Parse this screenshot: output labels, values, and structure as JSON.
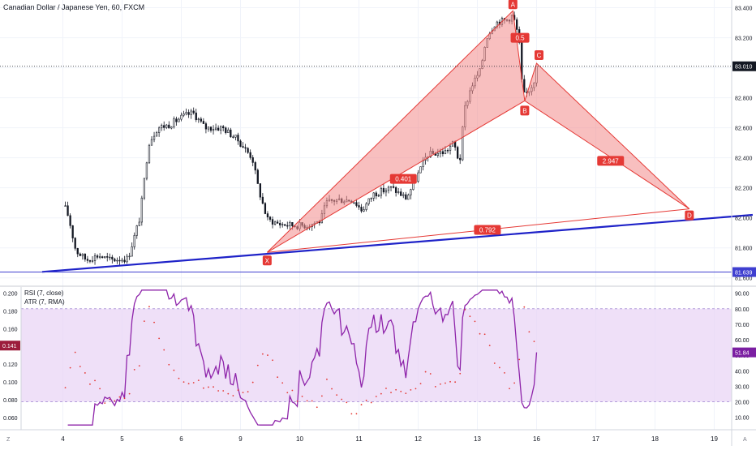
{
  "header": {
    "title": "Canadian Dollar / Japanese Yen, 60, FXCM"
  },
  "colors": {
    "up": "#ffffff",
    "down": "#131722",
    "pattern_fill": "#f28b8b",
    "pattern_stroke": "#e53935",
    "label_bg": "#e53935",
    "trendline": "#1e22c8",
    "hline": "#3f3fd0",
    "rsi_line": "#8e24aa",
    "rsi_band": "#e9d5f5",
    "atr_dots": "#e53935",
    "price_tag": "#131722",
    "atr_tag": "#9c1c3c",
    "rsi_tag": "#7b1fa2"
  },
  "chart_data": [
    {
      "type": "candlestick",
      "title": "Canadian Dollar / Japanese Yen, 60, FXCM",
      "x_ticks": [
        "4",
        "5",
        "6",
        "9",
        "10",
        "11",
        "12",
        "13",
        "16",
        "17",
        "18",
        "19"
      ],
      "y_ticks": [
        "81.600",
        "81.800",
        "82.000",
        "82.200",
        "82.400",
        "82.600",
        "82.800",
        "83.000",
        "83.200",
        "83.400"
      ],
      "ylim": [
        81.55,
        83.43
      ],
      "last_price": "83.010",
      "hline_level": "81.639",
      "keyframes": [
        {
          "t": 0,
          "p": 82.08
        },
        {
          "t": 0.05,
          "p": 82.06
        },
        {
          "t": 0.1,
          "p": 82.0
        },
        {
          "t": 0.22,
          "p": 81.78
        },
        {
          "t": 0.4,
          "p": 81.72
        },
        {
          "t": 0.6,
          "p": 81.75
        },
        {
          "t": 0.8,
          "p": 81.72
        },
        {
          "t": 1.1,
          "p": 81.73
        },
        {
          "t": 1.3,
          "p": 82.0
        },
        {
          "t": 1.45,
          "p": 82.5
        },
        {
          "t": 1.6,
          "p": 82.6
        },
        {
          "t": 1.8,
          "p": 82.62
        },
        {
          "t": 2.05,
          "p": 82.68
        },
        {
          "t": 2.2,
          "p": 82.7
        },
        {
          "t": 2.4,
          "p": 82.6
        },
        {
          "t": 2.7,
          "p": 82.6
        },
        {
          "t": 2.95,
          "p": 82.52
        },
        {
          "t": 3.2,
          "p": 82.4
        },
        {
          "t": 3.3,
          "p": 82.2
        },
        {
          "t": 3.45,
          "p": 81.99
        },
        {
          "t": 3.65,
          "p": 81.96
        },
        {
          "t": 3.9,
          "p": 81.95
        },
        {
          "t": 4.12,
          "p": 81.95
        },
        {
          "t": 4.35,
          "p": 81.98
        },
        {
          "t": 4.45,
          "p": 82.1
        },
        {
          "t": 4.6,
          "p": 82.12
        },
        {
          "t": 4.9,
          "p": 82.12
        },
        {
          "t": 5.05,
          "p": 82.05
        },
        {
          "t": 5.25,
          "p": 82.16
        },
        {
          "t": 5.55,
          "p": 82.2
        },
        {
          "t": 5.8,
          "p": 82.13
        },
        {
          "t": 5.95,
          "p": 82.25
        },
        {
          "t": 6.15,
          "p": 82.42
        },
        {
          "t": 6.45,
          "p": 82.44
        },
        {
          "t": 6.6,
          "p": 82.5
        },
        {
          "t": 6.7,
          "p": 82.36
        },
        {
          "t": 6.78,
          "p": 82.72
        },
        {
          "t": 6.9,
          "p": 82.88
        },
        {
          "t": 7.05,
          "p": 82.98
        },
        {
          "t": 7.15,
          "p": 83.2
        },
        {
          "t": 7.3,
          "p": 83.3
        },
        {
          "t": 7.5,
          "p": 83.32
        },
        {
          "t": 7.6,
          "p": 83.35
        },
        {
          "t": 7.7,
          "p": 83.2
        },
        {
          "t": 7.76,
          "p": 82.85
        },
        {
          "t": 7.8,
          "p": 82.81
        },
        {
          "t": 7.95,
          "p": 82.9
        },
        {
          "t": 8.0,
          "p": 83.02
        }
      ],
      "pattern": {
        "points": [
          {
            "label": "X",
            "t": 3.45,
            "p": 81.77
          },
          {
            "label": "A",
            "t": 7.6,
            "p": 83.38
          },
          {
            "label": "B",
            "t": 7.8,
            "p": 82.78
          },
          {
            "label": "C",
            "t": 8.0,
            "p": 83.03
          },
          {
            "label": "D",
            "t": 10.58,
            "p": 82.06
          }
        ],
        "ratios": [
          {
            "label": "0.401",
            "t": 5.75,
            "p": 82.26
          },
          {
            "label": "0.5",
            "t": 7.72,
            "p": 83.2
          },
          {
            "label": "2.947",
            "t": 9.25,
            "p": 82.38
          },
          {
            "label": "0.792",
            "t": 7.17,
            "p": 81.92
          }
        ]
      },
      "trendline": {
        "from": {
          "t": -0.35,
          "p": 81.64
        },
        "to": {
          "t": 11.65,
          "p": 82.02
        }
      }
    },
    {
      "type": "line",
      "series": [
        {
          "name": "RSI (7, close)",
          "last_value": "51.84"
        },
        {
          "name": "ATR (7, RMA)",
          "last_value": "0.141"
        }
      ],
      "rsi_y_ticks": [
        "10.00",
        "20.00",
        "30.00",
        "40.00",
        "50.00",
        "60.00",
        "70.00",
        "80.00",
        "90.00"
      ],
      "rsi_ylim": [
        3,
        94
      ],
      "rsi_band": [
        20,
        80
      ],
      "atr_y_ticks": [
        "0.060",
        "0.080",
        "0.100",
        "0.120",
        "0.140",
        "0.160",
        "0.180",
        "0.200"
      ],
      "atr_ylim": [
        0.048,
        0.207
      ]
    }
  ],
  "footer": {
    "left_letter": "Z",
    "right_letter": "A"
  }
}
